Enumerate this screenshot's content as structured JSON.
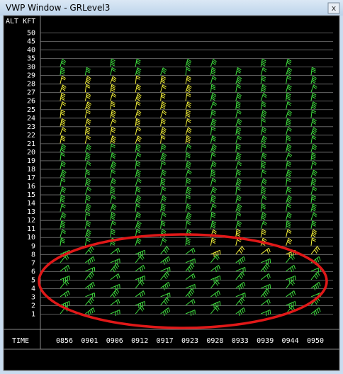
{
  "window": {
    "title": "VWP Window - GRLevel3",
    "close": "x"
  },
  "panel": {
    "header": "ALT KFT",
    "altitudes": [
      50,
      45,
      40,
      35,
      30,
      29,
      28,
      27,
      26,
      25,
      24,
      23,
      22,
      21,
      20,
      19,
      18,
      17,
      16,
      15,
      14,
      13,
      12,
      11,
      10,
      9,
      8,
      7,
      6,
      5,
      4,
      3,
      2,
      1
    ],
    "time_label": "TIME",
    "times": [
      "0856",
      "0901",
      "0906",
      "0912",
      "0917",
      "0923",
      "0928",
      "0933",
      "0939",
      "0944",
      "0950"
    ]
  }
}
